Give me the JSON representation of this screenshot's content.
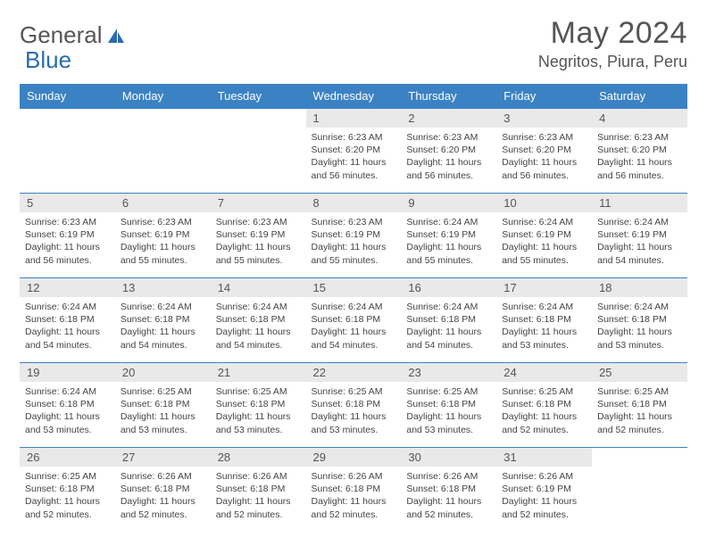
{
  "brand": {
    "part1": "General",
    "part2": "Blue"
  },
  "title": {
    "month": "May 2024",
    "location": "Negritos, Piura, Peru"
  },
  "colors": {
    "header_bg": "#3b82c4",
    "row_border": "#3b82c4",
    "daynum_bg": "#e9e9e9"
  },
  "weekdays": [
    "Sunday",
    "Monday",
    "Tuesday",
    "Wednesday",
    "Thursday",
    "Friday",
    "Saturday"
  ],
  "weeks": [
    [
      {
        "n": "",
        "sr": "",
        "ss": "",
        "dl": ""
      },
      {
        "n": "",
        "sr": "",
        "ss": "",
        "dl": ""
      },
      {
        "n": "",
        "sr": "",
        "ss": "",
        "dl": ""
      },
      {
        "n": "1",
        "sr": "Sunrise: 6:23 AM",
        "ss": "Sunset: 6:20 PM",
        "dl": "Daylight: 11 hours and 56 minutes."
      },
      {
        "n": "2",
        "sr": "Sunrise: 6:23 AM",
        "ss": "Sunset: 6:20 PM",
        "dl": "Daylight: 11 hours and 56 minutes."
      },
      {
        "n": "3",
        "sr": "Sunrise: 6:23 AM",
        "ss": "Sunset: 6:20 PM",
        "dl": "Daylight: 11 hours and 56 minutes."
      },
      {
        "n": "4",
        "sr": "Sunrise: 6:23 AM",
        "ss": "Sunset: 6:20 PM",
        "dl": "Daylight: 11 hours and 56 minutes."
      }
    ],
    [
      {
        "n": "5",
        "sr": "Sunrise: 6:23 AM",
        "ss": "Sunset: 6:19 PM",
        "dl": "Daylight: 11 hours and 56 minutes."
      },
      {
        "n": "6",
        "sr": "Sunrise: 6:23 AM",
        "ss": "Sunset: 6:19 PM",
        "dl": "Daylight: 11 hours and 55 minutes."
      },
      {
        "n": "7",
        "sr": "Sunrise: 6:23 AM",
        "ss": "Sunset: 6:19 PM",
        "dl": "Daylight: 11 hours and 55 minutes."
      },
      {
        "n": "8",
        "sr": "Sunrise: 6:23 AM",
        "ss": "Sunset: 6:19 PM",
        "dl": "Daylight: 11 hours and 55 minutes."
      },
      {
        "n": "9",
        "sr": "Sunrise: 6:24 AM",
        "ss": "Sunset: 6:19 PM",
        "dl": "Daylight: 11 hours and 55 minutes."
      },
      {
        "n": "10",
        "sr": "Sunrise: 6:24 AM",
        "ss": "Sunset: 6:19 PM",
        "dl": "Daylight: 11 hours and 55 minutes."
      },
      {
        "n": "11",
        "sr": "Sunrise: 6:24 AM",
        "ss": "Sunset: 6:19 PM",
        "dl": "Daylight: 11 hours and 54 minutes."
      }
    ],
    [
      {
        "n": "12",
        "sr": "Sunrise: 6:24 AM",
        "ss": "Sunset: 6:18 PM",
        "dl": "Daylight: 11 hours and 54 minutes."
      },
      {
        "n": "13",
        "sr": "Sunrise: 6:24 AM",
        "ss": "Sunset: 6:18 PM",
        "dl": "Daylight: 11 hours and 54 minutes."
      },
      {
        "n": "14",
        "sr": "Sunrise: 6:24 AM",
        "ss": "Sunset: 6:18 PM",
        "dl": "Daylight: 11 hours and 54 minutes."
      },
      {
        "n": "15",
        "sr": "Sunrise: 6:24 AM",
        "ss": "Sunset: 6:18 PM",
        "dl": "Daylight: 11 hours and 54 minutes."
      },
      {
        "n": "16",
        "sr": "Sunrise: 6:24 AM",
        "ss": "Sunset: 6:18 PM",
        "dl": "Daylight: 11 hours and 54 minutes."
      },
      {
        "n": "17",
        "sr": "Sunrise: 6:24 AM",
        "ss": "Sunset: 6:18 PM",
        "dl": "Daylight: 11 hours and 53 minutes."
      },
      {
        "n": "18",
        "sr": "Sunrise: 6:24 AM",
        "ss": "Sunset: 6:18 PM",
        "dl": "Daylight: 11 hours and 53 minutes."
      }
    ],
    [
      {
        "n": "19",
        "sr": "Sunrise: 6:24 AM",
        "ss": "Sunset: 6:18 PM",
        "dl": "Daylight: 11 hours and 53 minutes."
      },
      {
        "n": "20",
        "sr": "Sunrise: 6:25 AM",
        "ss": "Sunset: 6:18 PM",
        "dl": "Daylight: 11 hours and 53 minutes."
      },
      {
        "n": "21",
        "sr": "Sunrise: 6:25 AM",
        "ss": "Sunset: 6:18 PM",
        "dl": "Daylight: 11 hours and 53 minutes."
      },
      {
        "n": "22",
        "sr": "Sunrise: 6:25 AM",
        "ss": "Sunset: 6:18 PM",
        "dl": "Daylight: 11 hours and 53 minutes."
      },
      {
        "n": "23",
        "sr": "Sunrise: 6:25 AM",
        "ss": "Sunset: 6:18 PM",
        "dl": "Daylight: 11 hours and 53 minutes."
      },
      {
        "n": "24",
        "sr": "Sunrise: 6:25 AM",
        "ss": "Sunset: 6:18 PM",
        "dl": "Daylight: 11 hours and 52 minutes."
      },
      {
        "n": "25",
        "sr": "Sunrise: 6:25 AM",
        "ss": "Sunset: 6:18 PM",
        "dl": "Daylight: 11 hours and 52 minutes."
      }
    ],
    [
      {
        "n": "26",
        "sr": "Sunrise: 6:25 AM",
        "ss": "Sunset: 6:18 PM",
        "dl": "Daylight: 11 hours and 52 minutes."
      },
      {
        "n": "27",
        "sr": "Sunrise: 6:26 AM",
        "ss": "Sunset: 6:18 PM",
        "dl": "Daylight: 11 hours and 52 minutes."
      },
      {
        "n": "28",
        "sr": "Sunrise: 6:26 AM",
        "ss": "Sunset: 6:18 PM",
        "dl": "Daylight: 11 hours and 52 minutes."
      },
      {
        "n": "29",
        "sr": "Sunrise: 6:26 AM",
        "ss": "Sunset: 6:18 PM",
        "dl": "Daylight: 11 hours and 52 minutes."
      },
      {
        "n": "30",
        "sr": "Sunrise: 6:26 AM",
        "ss": "Sunset: 6:18 PM",
        "dl": "Daylight: 11 hours and 52 minutes."
      },
      {
        "n": "31",
        "sr": "Sunrise: 6:26 AM",
        "ss": "Sunset: 6:19 PM",
        "dl": "Daylight: 11 hours and 52 minutes."
      },
      {
        "n": "",
        "sr": "",
        "ss": "",
        "dl": ""
      }
    ]
  ]
}
